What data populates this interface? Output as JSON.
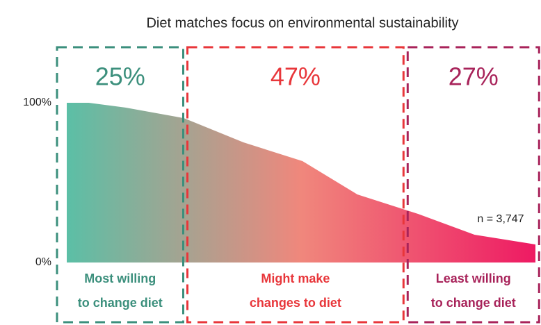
{
  "chart_data": {
    "type": "area",
    "title": "Diet matches focus on environmental sustainability",
    "x": [
      0,
      4.7,
      12.5,
      25,
      37.7,
      50.3,
      62,
      75,
      87,
      100
    ],
    "y": [
      100,
      100,
      97,
      90.4,
      75.2,
      63.5,
      42.6,
      30.4,
      17.4,
      11.3
    ],
    "xlim": [
      0,
      100
    ],
    "ylim": [
      0,
      100
    ],
    "yticks": [
      {
        "value": 0,
        "label": "0%"
      },
      {
        "value": 100,
        "label": "100%"
      }
    ],
    "gradient_colors": [
      "#5bbfa6",
      "#f0877c",
      "#ee1a63"
    ],
    "annotation": "n = 3,747",
    "segments": {
      "values": [
        25,
        47,
        27
      ],
      "value_labels": [
        "25%",
        "47%",
        "27%"
      ],
      "labels": [
        [
          "Most willing",
          "to change diet"
        ],
        [
          "Might make",
          "changes to diet"
        ],
        [
          "Least willing",
          "to change diet"
        ]
      ],
      "colors": [
        "#3b8f7c",
        "#e8363a",
        "#a8235a"
      ]
    }
  }
}
